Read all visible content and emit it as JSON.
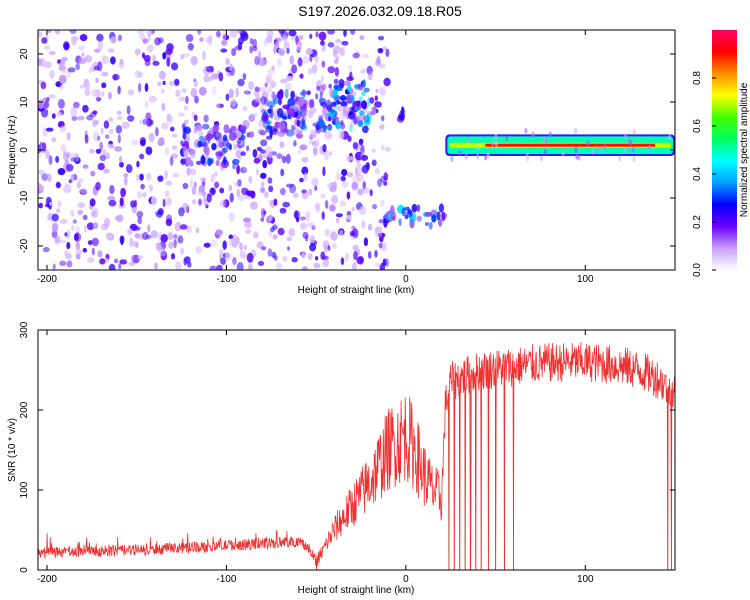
{
  "title": "S197.2026.032.09.18.R05",
  "chart_data": [
    {
      "type": "heatmap",
      "name": "spectrogram",
      "xlabel": "Height of straight line (km)",
      "ylabel": "Frequency (Hz)",
      "xlim": [
        -205,
        150
      ],
      "ylim": [
        -25,
        25
      ],
      "xticks": [
        -200,
        -100,
        0,
        100
      ],
      "yticks": [
        -20,
        -10,
        0,
        10,
        20
      ],
      "colorbar": {
        "label": "Normalized spectral amplitude",
        "range": [
          0,
          1
        ],
        "ticks": [
          "0.0",
          "0.2",
          "0.4",
          "0.6",
          "0.8"
        ],
        "tick_values": [
          0,
          0.2,
          0.4,
          0.6,
          0.8
        ],
        "colors": [
          "#ffffff",
          "#c8a0ff",
          "#6a00ff",
          "#0000ff",
          "#00a0ff",
          "#00ffff",
          "#00ff60",
          "#40ff00",
          "#ffff00",
          "#ff9000",
          "#ff0000",
          "#ff0060"
        ]
      },
      "regions": [
        {
          "label": "broadband noise",
          "x_range": [
            -205,
            -20
          ],
          "f_range": [
            -25,
            25
          ],
          "amplitude": 0.1
        },
        {
          "label": "weak cluster",
          "x_range": [
            -125,
            -90
          ],
          "f_range": [
            -3,
            5
          ],
          "amplitude": 0.22
        },
        {
          "label": "weak cluster",
          "x_range": [
            -80,
            -55
          ],
          "f_range": [
            3,
            12
          ],
          "amplitude": 0.25
        },
        {
          "label": "weak cluster",
          "x_range": [
            -50,
            -20
          ],
          "f_range": [
            4,
            14
          ],
          "amplitude": 0.3
        },
        {
          "label": "noise column",
          "x_range": [
            -20,
            -10
          ],
          "f_range": [
            -25,
            25
          ],
          "amplitude": 0.08
        },
        {
          "label": "lower sideband",
          "x_range": [
            -12,
            22
          ],
          "f_range": [
            -16,
            -12
          ],
          "amplitude": 0.3
        },
        {
          "label": "spike",
          "x_range": [
            -3,
            0
          ],
          "f_range": [
            6,
            9
          ],
          "amplitude": 0.2
        },
        {
          "label": "carrier line",
          "x_range": [
            22,
            150
          ],
          "f_range": [
            0,
            2
          ],
          "amplitude": 0.9
        }
      ]
    },
    {
      "type": "line",
      "name": "snr",
      "xlabel": "Height of straight line (km)",
      "ylabel": "SNR (10 * v/v)",
      "xlim": [
        -205,
        150
      ],
      "ylim": [
        0,
        300
      ],
      "xticks": [
        -200,
        -100,
        0,
        100
      ],
      "yticks": [
        0,
        100,
        200,
        300
      ],
      "color": "#f03030",
      "series": [
        {
          "name": "SNR",
          "x": [
            -205,
            -180,
            -150,
            -120,
            -100,
            -80,
            -70,
            -60,
            -55,
            -50,
            -45,
            -40,
            -30,
            -20,
            -15,
            -10,
            -5,
            0,
            5,
            10,
            15,
            20,
            22,
            25,
            30,
            40,
            50,
            60,
            70,
            80,
            90,
            100,
            110,
            120,
            130,
            140,
            145,
            150
          ],
          "y": [
            18,
            20,
            22,
            25,
            28,
            30,
            32,
            33,
            28,
            8,
            30,
            50,
            80,
            110,
            130,
            150,
            160,
            170,
            150,
            120,
            100,
            90,
            205,
            235,
            240,
            248,
            252,
            254,
            257,
            259,
            260,
            260,
            258,
            255,
            250,
            240,
            230,
            222
          ]
        },
        {
          "name": "SNR dropouts",
          "x": [
            24,
            27,
            30,
            33,
            36,
            39,
            42,
            46,
            50,
            55,
            60,
            146,
            148
          ],
          "y": [
            0,
            0,
            0,
            0,
            0,
            0,
            0,
            0,
            0,
            0,
            0,
            0,
            0
          ]
        }
      ]
    }
  ]
}
